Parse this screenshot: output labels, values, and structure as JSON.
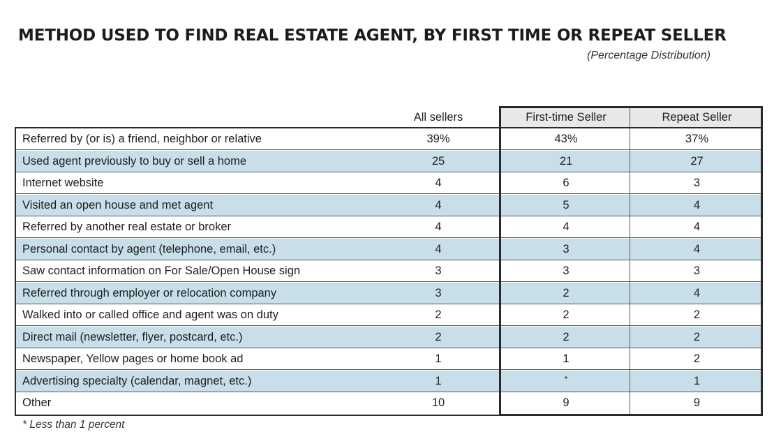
{
  "title": "METHOD USED TO FIND REAL ESTATE AGENT, BY FIRST TIME OR REPEAT SELLER",
  "subtitle": "(Percentage Distribution)",
  "footnote": "* Less than 1 percent",
  "colors": {
    "row_shade": "#c8dfea",
    "header_shade": "#e8e8e8",
    "border": "#2a2a2a"
  },
  "chart_data": {
    "type": "table",
    "columns": [
      "All sellers",
      "First-time Seller",
      "Repeat Seller"
    ],
    "rows": [
      {
        "label": "Referred by (or is) a friend, neighbor or relative",
        "values": [
          "39%",
          "43%",
          "37%"
        ]
      },
      {
        "label": "Used agent previously to buy or sell a home",
        "values": [
          "25",
          "21",
          "27"
        ]
      },
      {
        "label": "Internet website",
        "values": [
          "4",
          "6",
          "3"
        ]
      },
      {
        "label": "Visited an open house and met agent",
        "values": [
          "4",
          "5",
          "4"
        ]
      },
      {
        "label": "Referred by another real estate or broker",
        "values": [
          "4",
          "4",
          "4"
        ]
      },
      {
        "label": "Personal contact by agent (telephone, email, etc.)",
        "values": [
          "4",
          "3",
          "4"
        ]
      },
      {
        "label": "Saw contact information on For Sale/Open House sign",
        "values": [
          "3",
          "3",
          "3"
        ]
      },
      {
        "label": "Referred through employer or relocation company",
        "values": [
          "3",
          "2",
          "4"
        ]
      },
      {
        "label": "Walked into or called office and agent was on duty",
        "values": [
          "2",
          "2",
          "2"
        ]
      },
      {
        "label": "Direct mail (newsletter, flyer, postcard, etc.)",
        "values": [
          "2",
          "2",
          "2"
        ]
      },
      {
        "label": "Newspaper, Yellow pages or home book ad",
        "values": [
          "1",
          "1",
          "2"
        ]
      },
      {
        "label": "Advertising specialty (calendar, magnet, etc.)",
        "values": [
          "1",
          "*",
          "1"
        ]
      },
      {
        "label": "Other",
        "values": [
          "10",
          "9",
          "9"
        ]
      }
    ]
  }
}
